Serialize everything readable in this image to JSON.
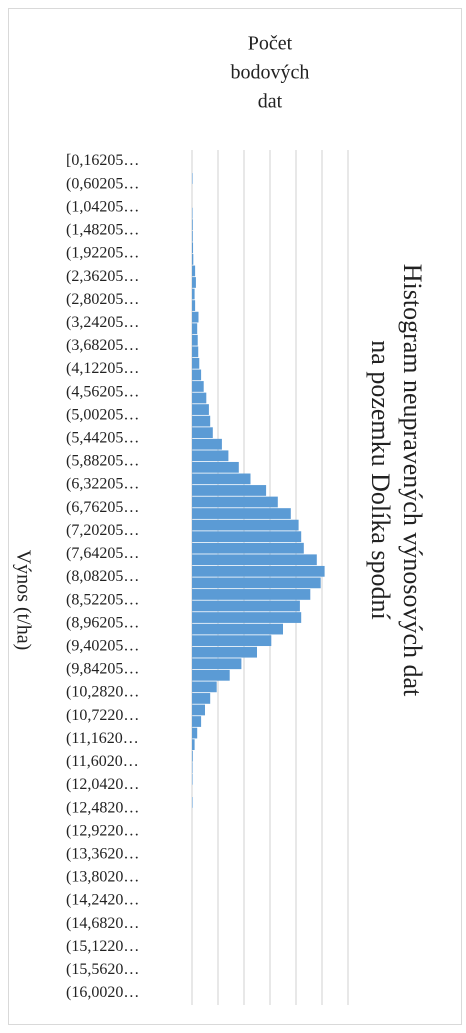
{
  "chart_data": {
    "type": "bar",
    "orientation": "horizontal",
    "title": [
      "Histogram neupravených výnosových dat",
      "na pozemku Dolíka spodní"
    ],
    "x_label": [
      "Počet",
      "bodových",
      "dat"
    ],
    "y_label": "Výnos (t/ha)",
    "color": "#5b9bd5",
    "grid": true,
    "xlim": [
      0,
      6
    ],
    "xticks": [
      0,
      1,
      2,
      3,
      4,
      5,
      6
    ],
    "categories": [
      "[0,16205…",
      null,
      "(0,60205…",
      null,
      "(1,04205…",
      null,
      "(1,48205…",
      null,
      "(1,92205…",
      null,
      "(2,36205…",
      null,
      "(2,80205…",
      null,
      "(3,24205…",
      null,
      "(3,68205…",
      null,
      "(4,12205…",
      null,
      "(4,56205…",
      null,
      "(5,00205…",
      null,
      "(5,44205…",
      null,
      "(5,88205…",
      null,
      "(6,32205…",
      null,
      "(6,76205…",
      null,
      "(7,20205…",
      null,
      "(7,64205…",
      null,
      "(8,08205…",
      null,
      "(8,52205…",
      null,
      "(8,96205…",
      null,
      "(9,40205…",
      null,
      "(9,84205…",
      null,
      "(10,2820…",
      null,
      "(10,7220…",
      null,
      "(11,1620…",
      null,
      "(11,6020…",
      null,
      "(12,0420…",
      null,
      "(12,4820…",
      null,
      "(12,9220…",
      null,
      "(13,3620…",
      null,
      "(13,8020…",
      null,
      "(14,2420…",
      null,
      "(14,6820…",
      null,
      "(15,1220…",
      null,
      "(15,5620…",
      null,
      "(16,0020…",
      null
    ],
    "values": [
      0,
      0,
      0.02,
      0,
      0,
      0.02,
      0.03,
      0.03,
      0.04,
      0.05,
      0.12,
      0.15,
      0.1,
      0.12,
      0.25,
      0.2,
      0.22,
      0.24,
      0.28,
      0.35,
      0.45,
      0.55,
      0.65,
      0.7,
      0.8,
      1.15,
      1.4,
      1.8,
      2.25,
      2.85,
      3.3,
      3.8,
      4.1,
      4.2,
      4.3,
      4.8,
      5.1,
      4.95,
      4.55,
      4.15,
      4.2,
      3.5,
      3.05,
      2.5,
      1.9,
      1.45,
      0.95,
      0.7,
      0.5,
      0.35,
      0.2,
      0.1,
      0.03,
      0.02,
      0.02,
      0,
      0.02,
      0,
      0,
      0,
      0,
      0,
      0,
      0,
      0,
      0,
      0,
      0,
      0,
      0,
      0,
      0,
      0,
      0
    ]
  }
}
